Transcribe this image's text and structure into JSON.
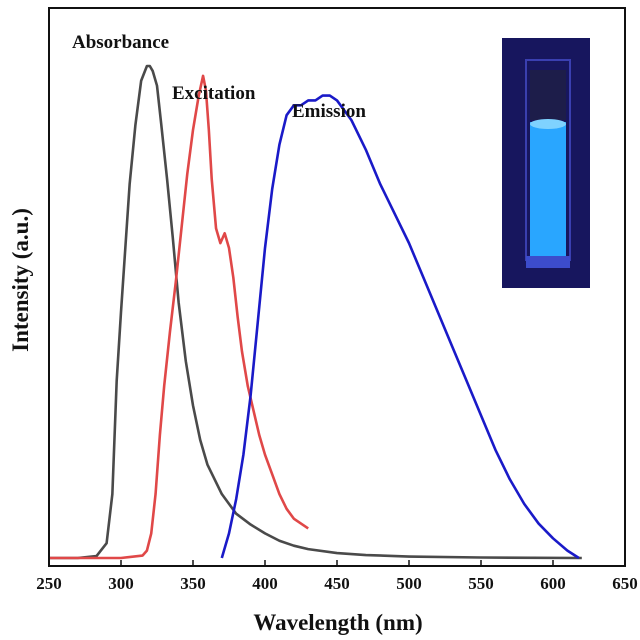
{
  "chart_data": {
    "type": "line",
    "title": "",
    "xlabel": "Wavelength (nm)",
    "ylabel": "Intensity (a.u.)",
    "xlim": [
      250,
      650
    ],
    "ylim": [
      0,
      1.0
    ],
    "x_ticks": [
      250,
      300,
      350,
      400,
      450,
      500,
      550,
      600,
      650
    ],
    "y_ticks_shown": false,
    "grid": false,
    "legend": "none",
    "series": [
      {
        "name": "Absorbance",
        "color": "#4a4a4a",
        "x": [
          250,
          270,
          283,
          290,
          294,
          297,
          300,
          303,
          306,
          310,
          314,
          318,
          320,
          322,
          325,
          328,
          332,
          336,
          340,
          345,
          350,
          355,
          360,
          365,
          370,
          375,
          380,
          390,
          400,
          410,
          420,
          430,
          450,
          470,
          500,
          550,
          620
        ],
        "y": [
          0.0,
          0.0,
          0.004,
          0.03,
          0.13,
          0.36,
          0.5,
          0.63,
          0.76,
          0.88,
          0.97,
          1.0,
          1.0,
          0.99,
          0.96,
          0.88,
          0.77,
          0.65,
          0.52,
          0.4,
          0.31,
          0.24,
          0.19,
          0.16,
          0.13,
          0.11,
          0.09,
          0.068,
          0.05,
          0.035,
          0.025,
          0.018,
          0.01,
          0.006,
          0.003,
          0.001,
          0.0
        ]
      },
      {
        "name": "Excitation",
        "color": "#e04848",
        "x": [
          250,
          300,
          315,
          318,
          321,
          324,
          327,
          330,
          334,
          338,
          342,
          346,
          350,
          354,
          357,
          359,
          361,
          363,
          366,
          369,
          372,
          375,
          378,
          381,
          384,
          388,
          392,
          396,
          400,
          405,
          410,
          415,
          420,
          425,
          430
        ],
        "y": [
          0.0,
          0.0,
          0.005,
          0.015,
          0.05,
          0.13,
          0.25,
          0.35,
          0.46,
          0.56,
          0.67,
          0.78,
          0.87,
          0.94,
          0.98,
          0.95,
          0.87,
          0.77,
          0.67,
          0.64,
          0.66,
          0.63,
          0.57,
          0.49,
          0.42,
          0.35,
          0.3,
          0.25,
          0.21,
          0.17,
          0.13,
          0.1,
          0.08,
          0.07,
          0.06
        ]
      },
      {
        "name": "Emission",
        "color": "#1a1ac8",
        "x": [
          370,
          375,
          380,
          385,
          390,
          395,
          400,
          405,
          410,
          415,
          420,
          425,
          430,
          435,
          440,
          445,
          450,
          455,
          460,
          470,
          480,
          490,
          500,
          510,
          520,
          530,
          540,
          550,
          560,
          570,
          580,
          590,
          600,
          610,
          618
        ],
        "y": [
          0.0,
          0.05,
          0.12,
          0.21,
          0.33,
          0.48,
          0.63,
          0.75,
          0.84,
          0.9,
          0.92,
          0.92,
          0.93,
          0.93,
          0.94,
          0.94,
          0.93,
          0.91,
          0.89,
          0.83,
          0.76,
          0.7,
          0.64,
          0.57,
          0.5,
          0.43,
          0.36,
          0.29,
          0.22,
          0.16,
          0.11,
          0.07,
          0.04,
          0.015,
          0.0
        ]
      }
    ],
    "annotations": [
      {
        "text": "Absorbance",
        "series": 0
      },
      {
        "text": "Excitation",
        "series": 1
      },
      {
        "text": "Emission",
        "series": 2
      }
    ],
    "inset_image": {
      "description_color_glow": "#2aa8ff",
      "background": "#1a1f6e"
    }
  }
}
